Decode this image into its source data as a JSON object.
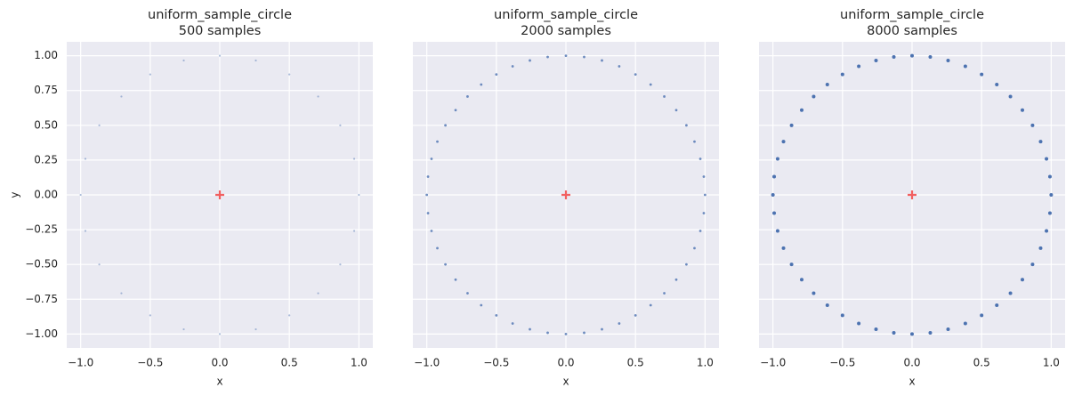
{
  "chart_data": [
    {
      "type": "scatter",
      "title": "uniform_sample_circle",
      "subtitle": "500 samples",
      "xlabel": "x",
      "ylabel": "y",
      "color": "#4c72b0",
      "alpha": 0.45,
      "marker_size": 1.1,
      "x": [
        1,
        0.966,
        0.866,
        0.707,
        0.5,
        0.259,
        0,
        -0.259,
        -0.5,
        -0.707,
        -0.866,
        -0.966,
        -1,
        -0.966,
        -0.866,
        -0.707,
        -0.5,
        -0.259,
        0,
        0.259,
        0.5,
        0.707,
        0.866,
        0.966
      ],
      "y": [
        0,
        0.259,
        0.5,
        0.707,
        0.866,
        0.966,
        1,
        0.966,
        0.866,
        0.707,
        0.5,
        0.259,
        0,
        -0.259,
        -0.5,
        -0.707,
        -0.866,
        -0.966,
        -1,
        -0.966,
        -0.866,
        -0.707,
        -0.5,
        -0.259
      ],
      "center": {
        "x": 0,
        "y": 0,
        "color": "#f26060"
      },
      "xlim": [
        -1.1,
        1.1
      ],
      "ylim": [
        -1.1,
        1.1
      ],
      "xticks": [
        {
          "value": -1,
          "label": "−1.0"
        },
        {
          "value": -0.5,
          "label": "−0.5"
        },
        {
          "value": 0,
          "label": "0.0"
        },
        {
          "value": 0.5,
          "label": "0.5"
        },
        {
          "value": 1,
          "label": "1.0"
        }
      ],
      "yticks": [
        {
          "value": 1,
          "label": "1.00"
        },
        {
          "value": 0.75,
          "label": "0.75"
        },
        {
          "value": 0.5,
          "label": "0.50"
        },
        {
          "value": 0.25,
          "label": "0.25"
        },
        {
          "value": 0,
          "label": "0.00"
        },
        {
          "value": -0.25,
          "label": "−0.25"
        },
        {
          "value": -0.5,
          "label": "−0.50"
        },
        {
          "value": -0.75,
          "label": "−0.75"
        },
        {
          "value": -1,
          "label": "−1.00"
        }
      ],
      "grid": true
    },
    {
      "type": "scatter",
      "title": "uniform_sample_circle",
      "subtitle": "2000 samples",
      "xlabel": "x",
      "color": "#4c72b0",
      "alpha": 0.8,
      "marker_size": 1.4,
      "x": [
        1,
        0.991,
        0.966,
        0.924,
        0.866,
        0.793,
        0.707,
        0.609,
        0.5,
        0.383,
        0.259,
        0.131,
        0,
        -0.131,
        -0.259,
        -0.383,
        -0.5,
        -0.609,
        -0.707,
        -0.793,
        -0.866,
        -0.924,
        -0.966,
        -0.991,
        -1,
        -0.991,
        -0.966,
        -0.924,
        -0.866,
        -0.793,
        -0.707,
        -0.609,
        -0.5,
        -0.383,
        -0.259,
        -0.131,
        0,
        0.131,
        0.259,
        0.383,
        0.5,
        0.609,
        0.707,
        0.793,
        0.866,
        0.924,
        0.966,
        0.991
      ],
      "y": [
        0,
        0.131,
        0.259,
        0.383,
        0.5,
        0.609,
        0.707,
        0.793,
        0.866,
        0.924,
        0.966,
        0.991,
        1,
        0.991,
        0.966,
        0.924,
        0.866,
        0.793,
        0.707,
        0.609,
        0.5,
        0.383,
        0.259,
        0.131,
        0,
        -0.131,
        -0.259,
        -0.383,
        -0.5,
        -0.609,
        -0.707,
        -0.793,
        -0.866,
        -0.924,
        -0.966,
        -0.991,
        -1,
        -0.991,
        -0.966,
        -0.924,
        -0.866,
        -0.793,
        -0.707,
        -0.609,
        -0.5,
        -0.383,
        -0.259,
        -0.131
      ],
      "center": {
        "x": 0,
        "y": 0,
        "color": "#f26060"
      },
      "xlim": [
        -1.1,
        1.1
      ],
      "ylim": [
        -1.1,
        1.1
      ],
      "xticks": [
        {
          "value": -1,
          "label": "−1.0"
        },
        {
          "value": -0.5,
          "label": "−0.5"
        },
        {
          "value": 0,
          "label": "0.0"
        },
        {
          "value": 0.5,
          "label": "0.5"
        },
        {
          "value": 1,
          "label": "1.0"
        }
      ],
      "yticks": [
        1,
        0.75,
        0.5,
        0.25,
        0,
        -0.25,
        -0.5,
        -0.75,
        -1
      ],
      "grid": true
    },
    {
      "type": "scatter",
      "title": "uniform_sample_circle",
      "subtitle": "8000 samples",
      "xlabel": "x",
      "color": "#4c72b0",
      "alpha": 1,
      "marker_size": 2,
      "x": [
        1,
        0.991,
        0.966,
        0.924,
        0.866,
        0.793,
        0.707,
        0.609,
        0.5,
        0.383,
        0.259,
        0.131,
        0,
        -0.131,
        -0.259,
        -0.383,
        -0.5,
        -0.609,
        -0.707,
        -0.793,
        -0.866,
        -0.924,
        -0.966,
        -0.991,
        -1,
        -0.991,
        -0.966,
        -0.924,
        -0.866,
        -0.793,
        -0.707,
        -0.609,
        -0.5,
        -0.383,
        -0.259,
        -0.131,
        0,
        0.131,
        0.259,
        0.383,
        0.5,
        0.609,
        0.707,
        0.793,
        0.866,
        0.924,
        0.966,
        0.991
      ],
      "y": [
        0,
        0.131,
        0.259,
        0.383,
        0.5,
        0.609,
        0.707,
        0.793,
        0.866,
        0.924,
        0.966,
        0.991,
        1,
        0.991,
        0.966,
        0.924,
        0.866,
        0.793,
        0.707,
        0.609,
        0.5,
        0.383,
        0.259,
        0.131,
        0,
        -0.131,
        -0.259,
        -0.383,
        -0.5,
        -0.609,
        -0.707,
        -0.793,
        -0.866,
        -0.924,
        -0.966,
        -0.991,
        -1,
        -0.991,
        -0.966,
        -0.924,
        -0.866,
        -0.793,
        -0.707,
        -0.609,
        -0.5,
        -0.383,
        -0.259,
        -0.131
      ],
      "center": {
        "x": 0,
        "y": 0,
        "color": "#f26060"
      },
      "xlim": [
        -1.1,
        1.1
      ],
      "ylim": [
        -1.1,
        1.1
      ],
      "xticks": [
        {
          "value": -1,
          "label": "−1.0"
        },
        {
          "value": -0.5,
          "label": "−0.5"
        },
        {
          "value": 0,
          "label": "0.0"
        },
        {
          "value": 0.5,
          "label": "0.5"
        },
        {
          "value": 1,
          "label": "1.0"
        }
      ],
      "yticks": [
        1,
        0.75,
        0.5,
        0.25,
        0,
        -0.25,
        -0.5,
        -0.75,
        -1
      ],
      "grid": true
    }
  ]
}
